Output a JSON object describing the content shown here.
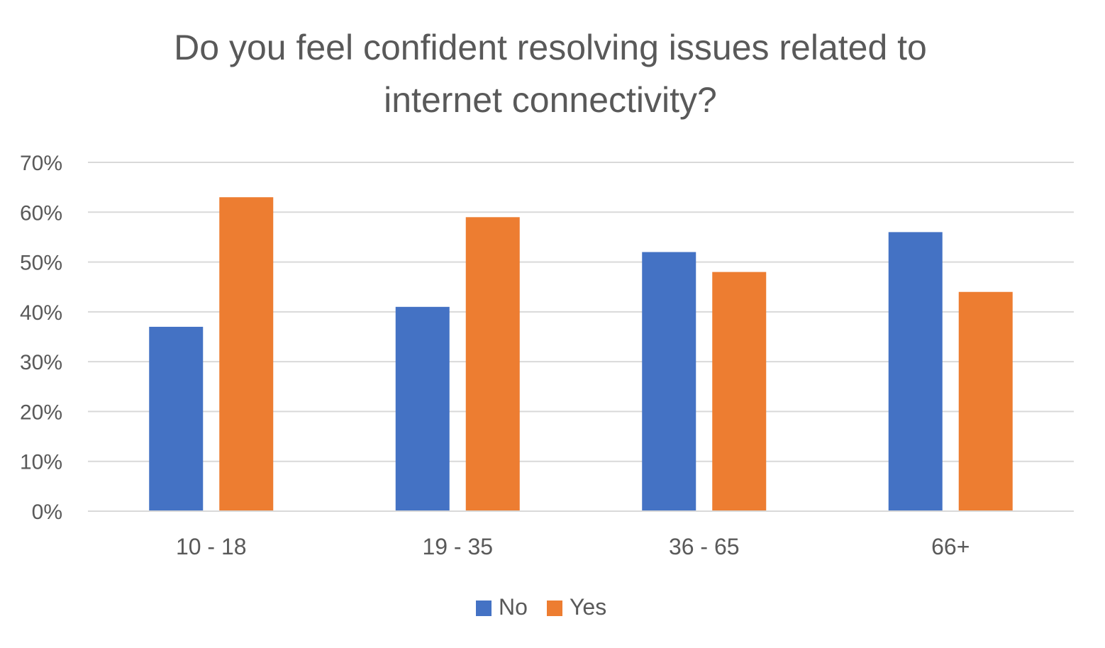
{
  "chart_data": {
    "type": "bar",
    "title_lines": [
      "Do you feel confident resolving issues related to",
      "internet connectivity?"
    ],
    "categories": [
      "10 - 18",
      "19 - 35",
      "36 - 65",
      "66+"
    ],
    "series": [
      {
        "name": "No",
        "color": "#4472C4",
        "values": [
          37,
          41,
          52,
          56
        ]
      },
      {
        "name": "Yes",
        "color": "#ED7D31",
        "values": [
          63,
          59,
          48,
          44
        ]
      }
    ],
    "ylim": [
      0,
      70
    ],
    "y_ticks": [
      0,
      10,
      20,
      30,
      40,
      50,
      60,
      70
    ],
    "y_tick_labels": [
      "0%",
      "10%",
      "20%",
      "30%",
      "40%",
      "50%",
      "60%",
      "70%"
    ],
    "grid": true,
    "legend_position": "bottom"
  }
}
